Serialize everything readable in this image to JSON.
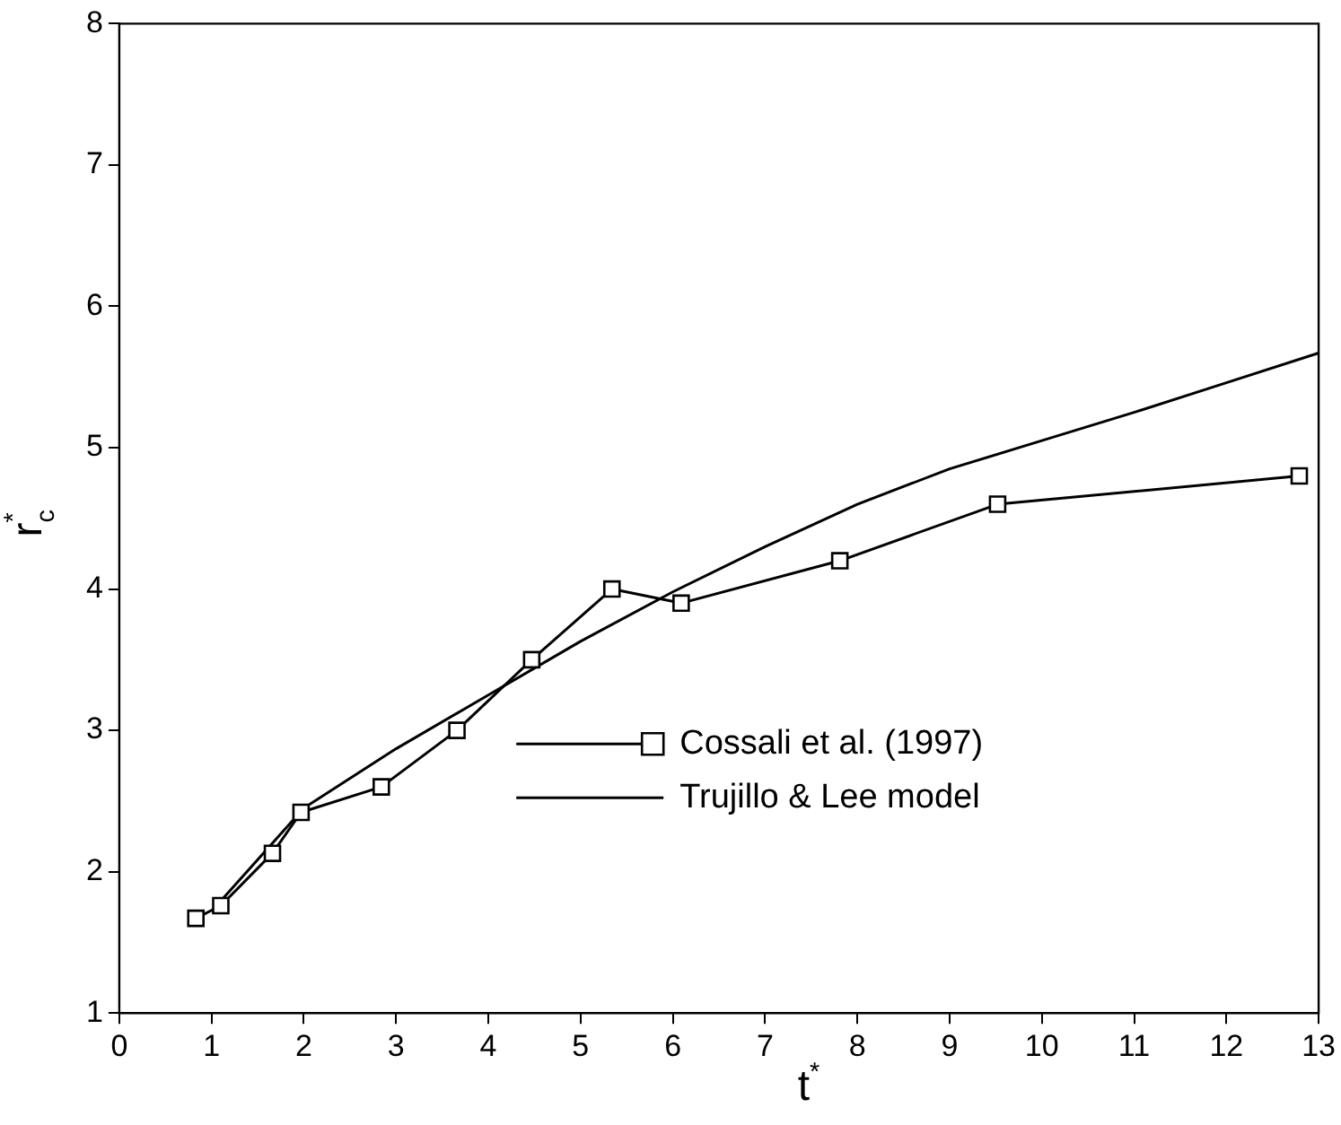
{
  "chart_data": {
    "type": "line",
    "xlabel": "t$^{*}$",
    "ylabel": "r$_{c}$$^{*}$",
    "xlim": [
      0,
      13
    ],
    "xticks": [
      0,
      1,
      2,
      3,
      4,
      5,
      6,
      7,
      8,
      9,
      10,
      11,
      12,
      13
    ],
    "ylim": [
      1,
      8
    ],
    "yticks": [
      1,
      2,
      3,
      4,
      5,
      6,
      7,
      8
    ],
    "grid": false,
    "legend": "bottom",
    "line_style": "solid",
    "series": [
      {
        "name": "Cossali et al. (1997)",
        "color": "#000000",
        "marker": "square",
        "x": [
          0.83,
          1.1,
          1.66,
          1.97,
          2.84,
          3.66,
          4.47,
          5.34,
          6.09,
          7.81,
          9.52,
          12.79
        ],
        "values": [
          1.67,
          1.76,
          2.13,
          2.42,
          2.6,
          3.0,
          3.5,
          4.0,
          3.9,
          4.2,
          4.6,
          4.8
        ]
      },
      {
        "name": "Trujillo & Lee model",
        "color": "#000000",
        "marker": "none",
        "x": [
          1,
          2,
          3,
          4,
          5,
          6,
          7,
          8,
          9,
          10,
          11,
          12,
          13
        ],
        "values": [
          1.72,
          2.45,
          2.87,
          3.25,
          3.63,
          3.98,
          4.3,
          4.6,
          4.85,
          5.05,
          5.25,
          5.46,
          5.67
        ]
      }
    ]
  }
}
